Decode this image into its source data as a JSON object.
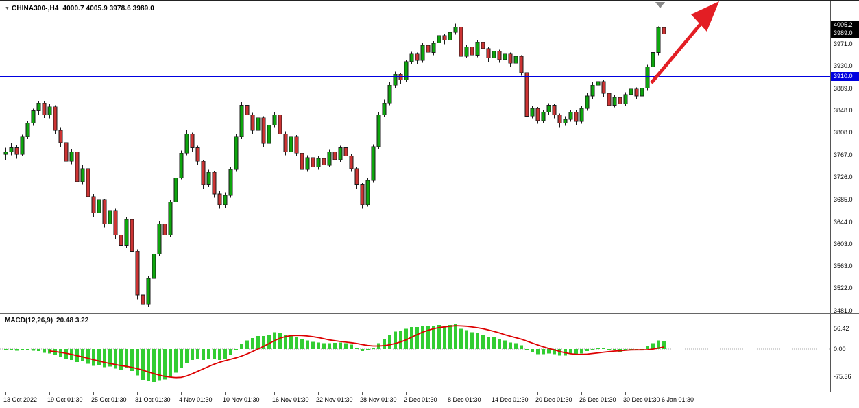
{
  "header": {
    "dropdown_icon": "▼",
    "symbol": "CHINA300-,H4",
    "quote": "4000.7 4005.9 3978.6 3989.0"
  },
  "macd_panel": {
    "label": "MACD(12,26,9)",
    "values": "20.48 3.22"
  },
  "chart_data": {
    "type": "candlestick",
    "symbol": "CHINA300-",
    "timeframe": "H4",
    "current_ohlc": {
      "open": 4000.7,
      "high": 4005.9,
      "low": 3978.6,
      "close": 3989.0
    },
    "price_ylim": [
      4050,
      3476
    ],
    "macd_ylim": [
      96,
      -114.7
    ],
    "price_axis_values": [
      3971,
      3930,
      3889,
      3848,
      3808,
      3767,
      3726,
      3685,
      3644,
      3603,
      3563,
      3522,
      3481
    ],
    "macd_axis_values": [
      56.42,
      0,
      -75.36
    ],
    "horizontal_lines": [
      {
        "name": "high-level-line",
        "price": 4005.2,
        "color": "#5a5a5a",
        "width": 1,
        "tag_bg": "#000000"
      },
      {
        "name": "bid-price-line",
        "price": 3989.0,
        "color": "#5a5a5a",
        "width": 1,
        "tag_bg": "#000000"
      },
      {
        "name": "support-line",
        "price": 3910.0,
        "color": "#0000e0",
        "width": 2,
        "tag_bg": "#0000e0"
      }
    ],
    "time_ticks": [
      {
        "i": 0,
        "label": "13 Oct 2022"
      },
      {
        "i": 8,
        "label": "19 Oct 01:30"
      },
      {
        "i": 16,
        "label": "25 Oct 01:30"
      },
      {
        "i": 24,
        "label": "31 Oct 01:30"
      },
      {
        "i": 32,
        "label": "4 Nov 01:30"
      },
      {
        "i": 40,
        "label": "10 Nov 01:30"
      },
      {
        "i": 49,
        "label": "16 Nov 01:30"
      },
      {
        "i": 57,
        "label": "22 Nov 01:30"
      },
      {
        "i": 65,
        "label": "28 Nov 01:30"
      },
      {
        "i": 73,
        "label": "2 Dec 01:30"
      },
      {
        "i": 81,
        "label": "8 Dec 01:30"
      },
      {
        "i": 89,
        "label": "14 Dec 01:30"
      },
      {
        "i": 97,
        "label": "20 Dec 01:30"
      },
      {
        "i": 105,
        "label": "26 Dec 01:30"
      },
      {
        "i": 113,
        "label": "30 Dec 01:30"
      },
      {
        "i": 120,
        "label": "6 Jan 01:30"
      }
    ],
    "candles": [
      [
        3768,
        3780,
        3758,
        3772
      ],
      [
        3772,
        3788,
        3766,
        3780
      ],
      [
        3780,
        3785,
        3760,
        3768
      ],
      [
        3768,
        3804,
        3765,
        3800
      ],
      [
        3800,
        3830,
        3796,
        3825
      ],
      [
        3825,
        3852,
        3820,
        3848
      ],
      [
        3848,
        3866,
        3840,
        3862
      ],
      [
        3862,
        3865,
        3835,
        3840
      ],
      [
        3840,
        3860,
        3834,
        3855
      ],
      [
        3855,
        3858,
        3806,
        3812
      ],
      [
        3812,
        3818,
        3782,
        3790
      ],
      [
        3790,
        3795,
        3748,
        3755
      ],
      [
        3755,
        3778,
        3750,
        3772
      ],
      [
        3772,
        3774,
        3712,
        3718
      ],
      [
        3718,
        3748,
        3712,
        3742
      ],
      [
        3742,
        3744,
        3684,
        3690
      ],
      [
        3690,
        3695,
        3652,
        3660
      ],
      [
        3660,
        3690,
        3655,
        3685
      ],
      [
        3685,
        3686,
        3634,
        3640
      ],
      [
        3640,
        3670,
        3635,
        3665
      ],
      [
        3665,
        3668,
        3612,
        3620
      ],
      [
        3620,
        3628,
        3590,
        3600
      ],
      [
        3600,
        3652,
        3596,
        3648
      ],
      [
        3648,
        3650,
        3584,
        3590
      ],
      [
        3590,
        3594,
        3502,
        3510
      ],
      [
        3510,
        3515,
        3481,
        3492
      ],
      [
        3492,
        3545,
        3488,
        3540
      ],
      [
        3540,
        3590,
        3536,
        3585
      ],
      [
        3585,
        3645,
        3582,
        3640
      ],
      [
        3640,
        3644,
        3610,
        3620
      ],
      [
        3620,
        3684,
        3616,
        3680
      ],
      [
        3680,
        3730,
        3676,
        3725
      ],
      [
        3725,
        3775,
        3722,
        3770
      ],
      [
        3770,
        3812,
        3766,
        3805
      ],
      [
        3805,
        3808,
        3772,
        3780
      ],
      [
        3780,
        3784,
        3748,
        3755
      ],
      [
        3755,
        3758,
        3705,
        3712
      ],
      [
        3712,
        3740,
        3708,
        3735
      ],
      [
        3735,
        3738,
        3688,
        3695
      ],
      [
        3695,
        3700,
        3668,
        3675
      ],
      [
        3675,
        3698,
        3670,
        3692
      ],
      [
        3692,
        3745,
        3688,
        3740
      ],
      [
        3740,
        3806,
        3736,
        3800
      ],
      [
        3800,
        3864,
        3796,
        3858
      ],
      [
        3858,
        3862,
        3832,
        3840
      ],
      [
        3840,
        3844,
        3806,
        3812
      ],
      [
        3812,
        3840,
        3808,
        3835
      ],
      [
        3835,
        3838,
        3782,
        3788
      ],
      [
        3788,
        3826,
        3784,
        3822
      ],
      [
        3822,
        3845,
        3818,
        3840
      ],
      [
        3840,
        3843,
        3798,
        3805
      ],
      [
        3805,
        3810,
        3766,
        3772
      ],
      [
        3772,
        3804,
        3768,
        3800
      ],
      [
        3800,
        3803,
        3764,
        3770
      ],
      [
        3770,
        3773,
        3734,
        3740
      ],
      [
        3740,
        3766,
        3736,
        3762
      ],
      [
        3762,
        3765,
        3738,
        3745
      ],
      [
        3745,
        3764,
        3740,
        3760
      ],
      [
        3760,
        3763,
        3742,
        3748
      ],
      [
        3748,
        3776,
        3744,
        3772
      ],
      [
        3772,
        3775,
        3752,
        3758
      ],
      [
        3758,
        3784,
        3754,
        3780
      ],
      [
        3780,
        3783,
        3758,
        3765
      ],
      [
        3765,
        3768,
        3736,
        3742
      ],
      [
        3742,
        3745,
        3705,
        3712
      ],
      [
        3712,
        3715,
        3668,
        3675
      ],
      [
        3675,
        3724,
        3672,
        3720
      ],
      [
        3720,
        3786,
        3716,
        3782
      ],
      [
        3782,
        3845,
        3778,
        3840
      ],
      [
        3840,
        3868,
        3836,
        3862
      ],
      [
        3862,
        3900,
        3858,
        3895
      ],
      [
        3895,
        3920,
        3890,
        3915
      ],
      [
        3915,
        3918,
        3898,
        3905
      ],
      [
        3905,
        3942,
        3901,
        3938
      ],
      [
        3938,
        3956,
        3934,
        3952
      ],
      [
        3952,
        3955,
        3934,
        3940
      ],
      [
        3940,
        3972,
        3936,
        3968
      ],
      [
        3968,
        3971,
        3948,
        3955
      ],
      [
        3955,
        3976,
        3950,
        3972
      ],
      [
        3972,
        3990,
        3968,
        3986
      ],
      [
        3986,
        3989,
        3970,
        3978
      ],
      [
        3978,
        3996,
        3974,
        3992
      ],
      [
        3992,
        4008,
        3988,
        4002
      ],
      [
        4002,
        4006,
        3942,
        3948
      ],
      [
        3948,
        3968,
        3944,
        3965
      ],
      [
        3965,
        3968,
        3944,
        3950
      ],
      [
        3950,
        3977,
        3946,
        3974
      ],
      [
        3974,
        3977,
        3956,
        3962
      ],
      [
        3962,
        3965,
        3938,
        3945
      ],
      [
        3945,
        3962,
        3940,
        3958
      ],
      [
        3958,
        3960,
        3936,
        3942
      ],
      [
        3942,
        3956,
        3938,
        3952
      ],
      [
        3952,
        3955,
        3928,
        3935
      ],
      [
        3935,
        3952,
        3930,
        3948
      ],
      [
        3948,
        3950,
        3912,
        3918
      ],
      [
        3918,
        3920,
        3832,
        3838
      ],
      [
        3838,
        3856,
        3834,
        3852
      ],
      [
        3852,
        3855,
        3824,
        3830
      ],
      [
        3830,
        3850,
        3826,
        3845
      ],
      [
        3845,
        3862,
        3840,
        3858
      ],
      [
        3858,
        3860,
        3834,
        3840
      ],
      [
        3840,
        3843,
        3818,
        3825
      ],
      [
        3825,
        3838,
        3820,
        3832
      ],
      [
        3832,
        3850,
        3828,
        3846
      ],
      [
        3846,
        3849,
        3822,
        3828
      ],
      [
        3828,
        3856,
        3824,
        3852
      ],
      [
        3852,
        3880,
        3848,
        3875
      ],
      [
        3875,
        3900,
        3870,
        3895
      ],
      [
        3895,
        3906,
        3890,
        3902
      ],
      [
        3902,
        3905,
        3874,
        3880
      ],
      [
        3880,
        3884,
        3852,
        3858
      ],
      [
        3858,
        3876,
        3854,
        3872
      ],
      [
        3872,
        3875,
        3854,
        3860
      ],
      [
        3860,
        3882,
        3856,
        3878
      ],
      [
        3878,
        3892,
        3874,
        3888
      ],
      [
        3888,
        3891,
        3870,
        3875
      ],
      [
        3875,
        3894,
        3871,
        3890
      ],
      [
        3890,
        3932,
        3886,
        3928
      ],
      [
        3928,
        3960,
        3924,
        3955
      ],
      [
        3955,
        4003,
        3950,
        4000.7
      ],
      [
        4000.7,
        4005.9,
        3978.6,
        3989.0
      ]
    ],
    "macd": [
      -1,
      -3,
      -5,
      -4,
      -3,
      -5,
      -6,
      -10,
      -12,
      -16,
      -22,
      -28,
      -30,
      -36,
      -34,
      -40,
      -46,
      -44,
      -50,
      -48,
      -54,
      -58,
      -52,
      -60,
      -72,
      -85,
      -88,
      -90,
      -86,
      -84,
      -76,
      -65,
      -52,
      -38,
      -30,
      -28,
      -30,
      -26,
      -28,
      -30,
      -26,
      -16,
      -2,
      14,
      24,
      30,
      36,
      36,
      40,
      46,
      44,
      38,
      36,
      32,
      26,
      24,
      20,
      18,
      16,
      16,
      17,
      18,
      16,
      12,
      4,
      -6,
      -4,
      4,
      16,
      26,
      38,
      48,
      50,
      56,
      60,
      60,
      64,
      62,
      64,
      66,
      64,
      66,
      68,
      56,
      52,
      46,
      44,
      40,
      34,
      32,
      26,
      24,
      18,
      16,
      10,
      -4,
      -8,
      -14,
      -14,
      -12,
      -14,
      -18,
      -18,
      -14,
      -16,
      -12,
      -6,
      0,
      4,
      2,
      -4,
      -4,
      -8,
      -4,
      -2,
      -4,
      0,
      8,
      16,
      24,
      20.48
    ],
    "colors": {
      "bull": "#0da60d",
      "bear": "#cc3333",
      "wick": "#1a1a1a",
      "histogram": "#32cd32",
      "signal": "#dd0000",
      "support": "#0000e0",
      "arrow": "#e31e24"
    }
  }
}
